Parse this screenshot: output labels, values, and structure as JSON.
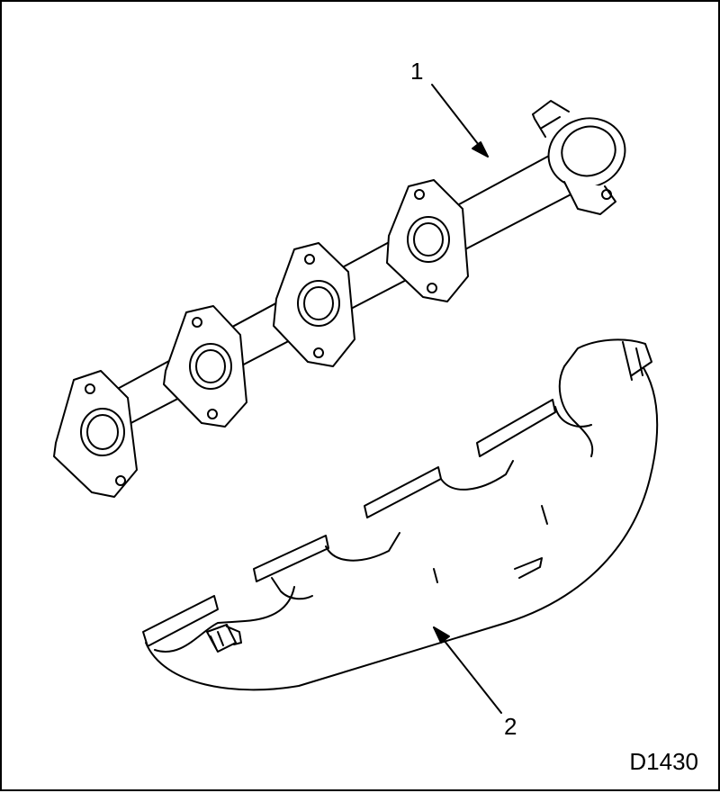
{
  "figure": {
    "id": "D1430",
    "callouts": [
      {
        "number": "1"
      },
      {
        "number": "2"
      }
    ],
    "parts": [
      "exhaust-manifold-gasket",
      "exhaust-manifold"
    ]
  }
}
